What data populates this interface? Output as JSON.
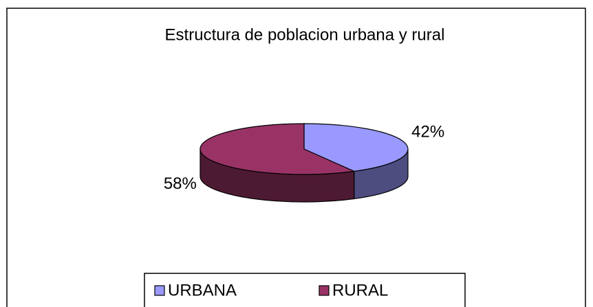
{
  "chart_data": {
    "type": "pie3d",
    "title": "Estructura de poblacion urbana y rural",
    "categories": [
      "URBANA",
      "RURAL"
    ],
    "values": [
      42,
      58
    ],
    "value_labels": [
      "42%",
      "58%"
    ],
    "colors": [
      "#9999ff",
      "#993366"
    ],
    "legend": "bottom"
  }
}
